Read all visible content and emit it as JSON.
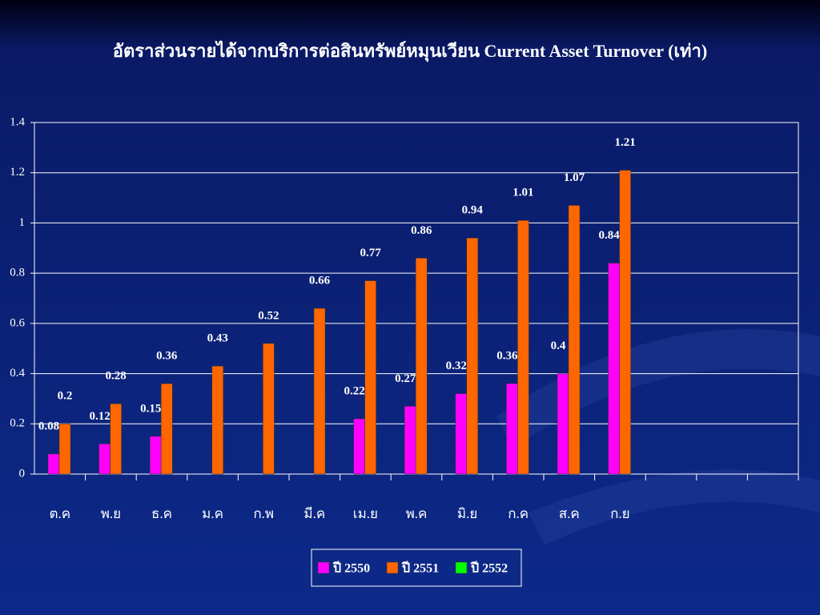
{
  "chart_data": {
    "type": "bar",
    "title": "อัตราส่วนรายได้จากบริการต่อสินทรัพย์หมุนเวียน Current Asset Turnover (เท่า)",
    "categories": [
      "ต.ค",
      "พ.ย",
      "ธ.ค",
      "ม.ค",
      "ก.พ",
      "มี.ค",
      "เม.ย",
      "พ.ค",
      "มิ.ย",
      "ก.ค",
      "ส.ค",
      "ก.ย",
      null,
      null,
      null
    ],
    "series": [
      {
        "name": "ปี 2550",
        "color": "#ff00ff",
        "values": [
          0.08,
          0.12,
          0.15,
          null,
          null,
          null,
          0.22,
          0.27,
          0.32,
          0.36,
          0.4,
          0.84,
          null,
          null,
          null
        ]
      },
      {
        "name": "ปี 2551",
        "color": "#ff6600",
        "values": [
          0.2,
          0.28,
          0.36,
          0.43,
          0.52,
          0.66,
          0.77,
          0.86,
          0.94,
          1.01,
          1.07,
          1.21,
          null,
          null,
          null
        ]
      },
      {
        "name": "ปี 2552",
        "color": "#00ff00",
        "values": [
          null,
          null,
          null,
          null,
          null,
          null,
          null,
          null,
          null,
          null,
          null,
          null,
          null,
          null,
          null
        ]
      }
    ],
    "ylim": [
      0,
      1.4
    ],
    "yticks": [
      0,
      0.2,
      0.4,
      0.6,
      0.8,
      1,
      1.2,
      1.4
    ],
    "grid": true,
    "legend": "bottom"
  }
}
